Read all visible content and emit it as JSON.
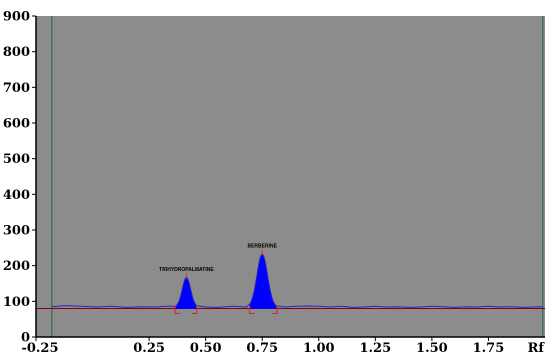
{
  "chart_data": {
    "type": "area",
    "title": "",
    "xlabel": "Rf",
    "ylabel": "",
    "xlim": [
      -0.25,
      2.0
    ],
    "ylim": [
      0,
      900
    ],
    "x_ticks": [
      {
        "value": -0.25,
        "label": "-0.25"
      },
      {
        "value": 0.25,
        "label": "0.25"
      },
      {
        "value": 0.5,
        "label": "0.50"
      },
      {
        "value": 0.75,
        "label": "0.75"
      },
      {
        "value": 1.0,
        "label": "1.00"
      },
      {
        "value": 1.25,
        "label": "1.25"
      },
      {
        "value": 1.5,
        "label": "1.50"
      },
      {
        "value": 1.75,
        "label": "1.75"
      }
    ],
    "y_ticks": [
      0,
      100,
      200,
      300,
      400,
      500,
      600,
      700,
      800,
      900
    ],
    "baseline": 80,
    "scan_start_rf": -0.18,
    "scan_end_rf": 1.99,
    "plot_background": "#8c8c8c",
    "trace_color": "#2222cc",
    "baseline_color": "#8b0000",
    "boundary_line_color": "#2e6b58",
    "peak_fill_color": "#0000ff",
    "integration_marker_color": "#dd2222",
    "peaks": [
      {
        "name": "TRIHYDROPALMATINE",
        "rf": 0.415,
        "height": 163,
        "start": 0.365,
        "end": 0.46
      },
      {
        "name": "BERBERINE",
        "rf": 0.75,
        "height": 228,
        "start": 0.695,
        "end": 0.815
      }
    ],
    "noise_points": [
      [
        -0.18,
        85
      ],
      [
        -0.12,
        88
      ],
      [
        -0.05,
        86
      ],
      [
        0.02,
        84
      ],
      [
        0.08,
        86
      ],
      [
        0.15,
        83
      ],
      [
        0.22,
        85
      ],
      [
        0.28,
        84
      ],
      [
        0.33,
        86
      ],
      [
        0.5,
        84
      ],
      [
        0.55,
        83
      ],
      [
        0.62,
        86
      ],
      [
        0.68,
        84
      ],
      [
        0.85,
        84
      ],
      [
        0.9,
        86
      ],
      [
        0.95,
        87
      ],
      [
        1.0,
        86
      ],
      [
        1.05,
        84
      ],
      [
        1.1,
        86
      ],
      [
        1.15,
        83
      ],
      [
        1.2,
        84
      ],
      [
        1.25,
        86
      ],
      [
        1.3,
        84
      ],
      [
        1.35,
        85
      ],
      [
        1.4,
        83
      ],
      [
        1.45,
        84
      ],
      [
        1.5,
        86
      ],
      [
        1.55,
        85
      ],
      [
        1.6,
        83
      ],
      [
        1.65,
        85
      ],
      [
        1.7,
        84
      ],
      [
        1.75,
        86
      ],
      [
        1.8,
        84
      ],
      [
        1.85,
        85
      ],
      [
        1.9,
        83
      ],
      [
        1.95,
        84
      ],
      [
        1.99,
        85
      ]
    ]
  }
}
